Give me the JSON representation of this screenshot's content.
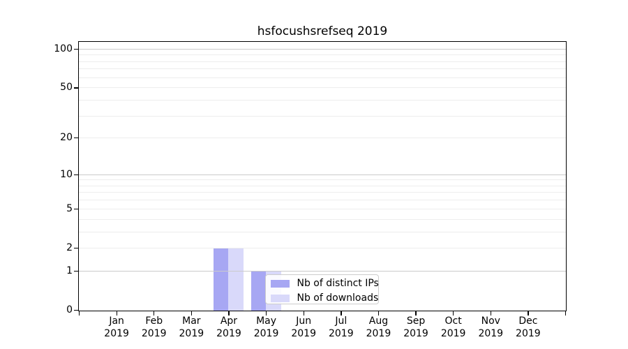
{
  "chart_data": {
    "type": "bar",
    "title": "hsfocushsrefseq 2019",
    "x_months": [
      "Jan",
      "Feb",
      "Mar",
      "Apr",
      "May",
      "Jun",
      "Jul",
      "Aug",
      "Sep",
      "Oct",
      "Nov",
      "Dec"
    ],
    "x_year": "2019",
    "series": [
      {
        "name": "Nb of distinct IPs",
        "color": "#a7a7f3",
        "values": [
          0,
          0,
          0,
          2,
          1,
          0,
          0,
          0,
          0,
          0,
          0,
          0
        ]
      },
      {
        "name": "Nb of downloads",
        "color": "#d9d9fa",
        "values": [
          0,
          0,
          0,
          2,
          1,
          0,
          0,
          0,
          0,
          0,
          0,
          0
        ]
      }
    ],
    "y_scale": "log1p",
    "ylim": [
      0,
      113
    ],
    "y_tick_values": [
      0,
      1,
      2,
      5,
      10,
      20,
      50,
      100
    ],
    "y_tick_labels": [
      "0",
      "1",
      "2",
      "5",
      "10",
      "20",
      "50",
      "100"
    ],
    "major_gridlines": [
      1,
      10,
      100
    ],
    "minor_gridlines": [
      2,
      3,
      4,
      5,
      6,
      7,
      8,
      9,
      20,
      30,
      40,
      50,
      60,
      70,
      80,
      90
    ],
    "grid": "horizontal only",
    "legend_position": "lower center-right inside plot",
    "colors": {
      "axis_spine": "#000000",
      "major_grid": "#cbcbcb",
      "minor_grid": "#ededed",
      "legend_border": "#cccccc"
    }
  }
}
